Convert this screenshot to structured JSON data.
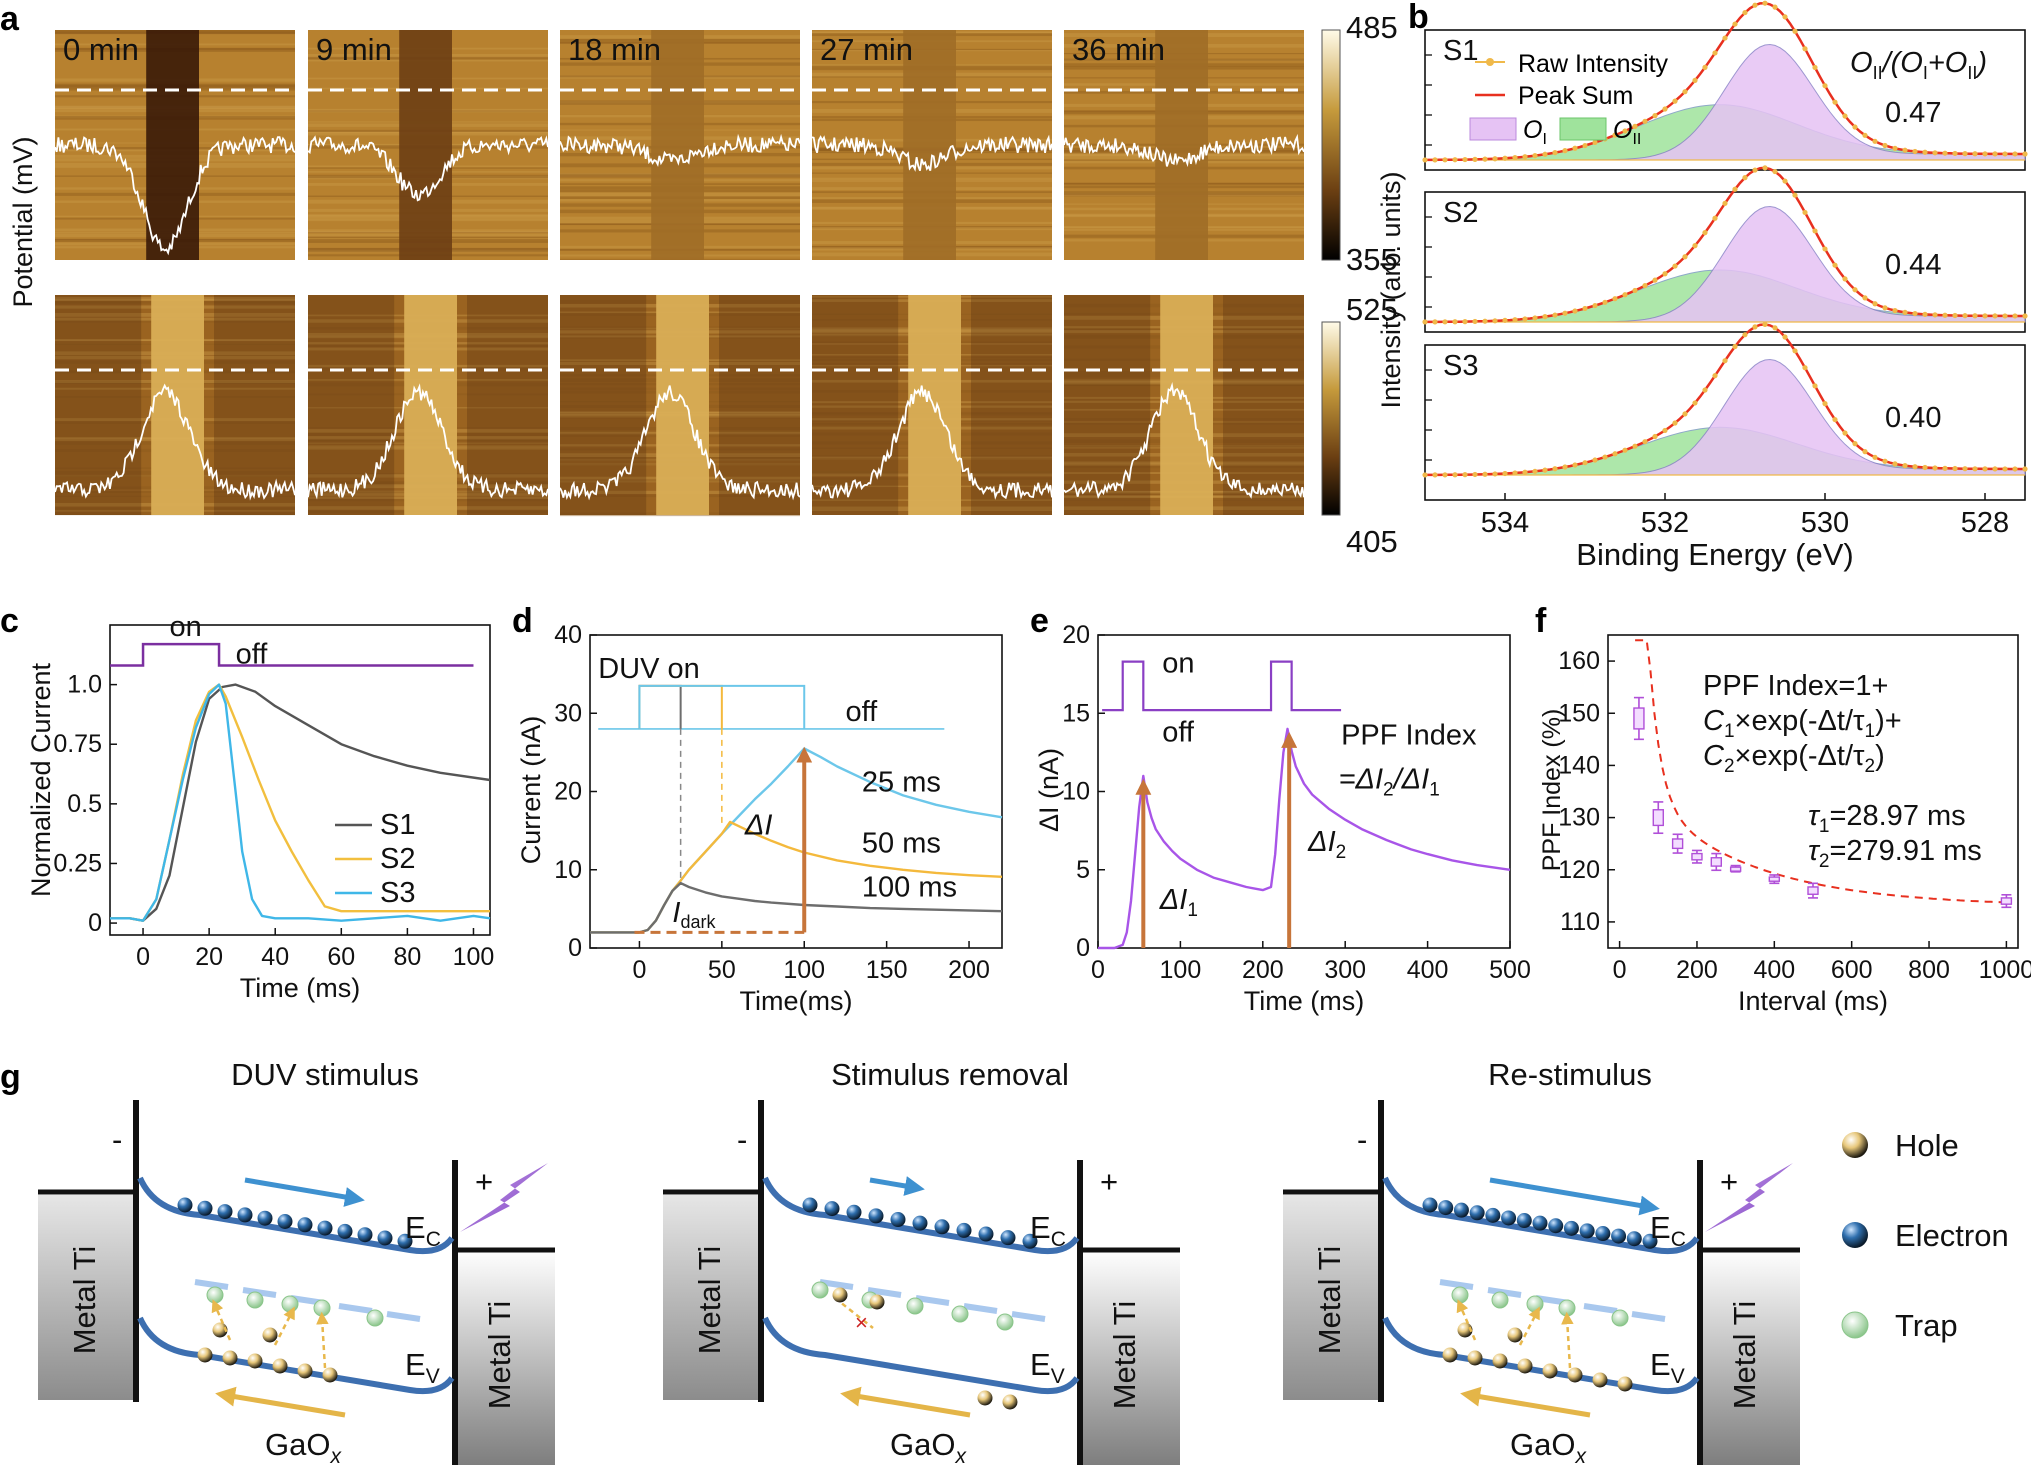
{
  "panel_labels": {
    "a": "a",
    "b": "b",
    "c": "c",
    "d": "d",
    "e": "e",
    "f": "f",
    "g": "g"
  },
  "panel_a": {
    "ylabel": "Potential (mV)",
    "top_times": [
      "0 min",
      "9 min",
      "18 min",
      "27 min",
      "36 min"
    ],
    "top_scale": {
      "max": "485",
      "min": "355"
    },
    "bottom_scale": {
      "max": "525",
      "min": "405"
    },
    "top_dip_depth": [
      0.95,
      0.45,
      0.15,
      0.18,
      0.15
    ],
    "bottom_peak_height": [
      0.85,
      0.85,
      0.85,
      0.85,
      0.85
    ]
  },
  "panel_b": {
    "ylabel": "Intensity (arb. units)",
    "legend": {
      "raw": "Raw Intensity",
      "peak": "Peak Sum",
      "o1": "O",
      "o1_sub": "I",
      "o2": "O",
      "o2_sub": "II"
    },
    "ratio": {
      "t1": "O",
      "s1": "II",
      "t2": "/(O",
      "s2": "I",
      "t3": "+O",
      "s3": "II",
      "t4": ")"
    },
    "colors": {
      "S1": "#3b7a1e",
      "S2": "#3b7a1e",
      "S3": "#a6d36f"
    },
    "chart_data": {
      "type": "line",
      "title": "",
      "xlabel": "Binding Energy (eV)",
      "x_ticks": [
        "534",
        "532",
        "530",
        "528"
      ],
      "xlim": [
        535,
        527.5
      ],
      "series": [
        {
          "name": "S1",
          "ratio": "0.47",
          "oi_amp": 1.0,
          "oii_amp": 0.47
        },
        {
          "name": "S2",
          "ratio": "0.44",
          "oi_amp": 1.0,
          "oii_amp": 0.44
        },
        {
          "name": "S3",
          "ratio": "0.40",
          "oi_amp": 1.0,
          "oii_amp": 0.4
        }
      ]
    }
  },
  "panel_c": {
    "chart_data": {
      "type": "line",
      "xlabel": "Time (ms)",
      "ylabel": "Normalized Current",
      "xlim": [
        -10,
        105
      ],
      "ylim": [
        -0.05,
        1.25
      ],
      "x_ticks": [
        "0",
        "20",
        "40",
        "60",
        "80",
        "100"
      ],
      "y_ticks": [
        "0",
        "0.25",
        "0.5",
        "0.75",
        "1.0"
      ],
      "pulse": {
        "on": "on",
        "off": "off"
      },
      "series": [
        {
          "name": "S1",
          "color": "#555555",
          "x": [
            -10,
            -4,
            0,
            4,
            8,
            12,
            16,
            20,
            24,
            28,
            34,
            40,
            50,
            60,
            70,
            80,
            90,
            105
          ],
          "y": [
            0.02,
            0.02,
            0.01,
            0.06,
            0.2,
            0.48,
            0.76,
            0.94,
            0.99,
            1.0,
            0.97,
            0.91,
            0.83,
            0.75,
            0.7,
            0.66,
            0.63,
            0.6
          ]
        },
        {
          "name": "S2",
          "color": "#f2bf3e",
          "x": [
            -10,
            -4,
            0,
            4,
            8,
            12,
            16,
            20,
            23,
            25,
            30,
            35,
            40,
            45,
            50,
            55,
            60,
            70,
            80,
            90,
            105
          ],
          "y": [
            0.02,
            0.02,
            0.01,
            0.1,
            0.35,
            0.62,
            0.85,
            0.97,
            1.0,
            0.95,
            0.78,
            0.6,
            0.43,
            0.3,
            0.18,
            0.07,
            0.05,
            0.05,
            0.05,
            0.05,
            0.05
          ]
        },
        {
          "name": "S3",
          "color": "#3fb7e8",
          "x": [
            -10,
            -4,
            0,
            4,
            8,
            12,
            16,
            20,
            23,
            25,
            28,
            30,
            33,
            36,
            40,
            50,
            60,
            70,
            80,
            90,
            100,
            105
          ],
          "y": [
            0.02,
            0.02,
            0.01,
            0.1,
            0.35,
            0.6,
            0.82,
            0.96,
            1.0,
            0.92,
            0.55,
            0.3,
            0.1,
            0.03,
            0.02,
            0.02,
            0.01,
            0.02,
            0.03,
            0.01,
            0.03,
            0.02
          ]
        }
      ]
    }
  },
  "panel_d": {
    "annot": {
      "duv": "DUV on",
      "off": "off",
      "dI": "ΔI",
      "idark": "I",
      "idark_sub": "dark"
    },
    "chart_data": {
      "type": "line",
      "xlabel": "Time(ms)",
      "ylabel": "Current (nA)",
      "xlim": [
        -30,
        220
      ],
      "ylim": [
        0,
        40
      ],
      "x_ticks": [
        "0",
        "50",
        "100",
        "150",
        "200"
      ],
      "y_ticks": [
        "0",
        "10",
        "20",
        "30",
        "40"
      ],
      "series": [
        {
          "name": "25 ms",
          "color": "#6cc7ea",
          "x": [
            -30,
            0,
            5,
            10,
            15,
            20,
            25,
            30,
            40,
            50,
            60,
            70,
            80,
            90,
            100,
            110,
            120,
            140,
            160,
            180,
            200,
            220
          ],
          "y": [
            2,
            2,
            2.3,
            3.5,
            5.5,
            7.3,
            8.6,
            10,
            12.3,
            14.6,
            16.8,
            19,
            21,
            23.2,
            25.5,
            24.4,
            23.2,
            21.2,
            19.5,
            18.3,
            17.4,
            16.7
          ]
        },
        {
          "name": "50 ms",
          "color": "#f4b93c",
          "x": [
            -30,
            0,
            5,
            10,
            15,
            20,
            25,
            30,
            40,
            50,
            55,
            60,
            70,
            80,
            90,
            100,
            120,
            140,
            160,
            180,
            200,
            220
          ],
          "y": [
            2,
            2,
            2.3,
            3.5,
            5.5,
            7.3,
            8.6,
            10,
            12.3,
            14.6,
            16.1,
            15.6,
            14.6,
            13.7,
            12.9,
            12.2,
            11.2,
            10.5,
            10,
            9.6,
            9.3,
            9.1
          ]
        },
        {
          "name": "100 ms",
          "color": "#6d6d6d",
          "x": [
            -30,
            0,
            5,
            10,
            15,
            20,
            25,
            30,
            40,
            50,
            60,
            70,
            80,
            100,
            120,
            140,
            160,
            180,
            200,
            220
          ],
          "y": [
            2,
            2,
            2.3,
            3.5,
            5.5,
            7.3,
            8.3,
            7.8,
            7.1,
            6.6,
            6.3,
            6.0,
            5.8,
            5.5,
            5.3,
            5.1,
            5.0,
            4.9,
            4.8,
            4.7
          ]
        }
      ]
    }
  },
  "panel_e": {
    "annot": {
      "on": "on",
      "off": "off",
      "ppf1": "PPF Index",
      "ppf2": "=ΔI",
      "ppf2_sub": "2",
      "ppf3": "/ΔI",
      "ppf3_sub": "1",
      "d1": "ΔI",
      "d1_sub": "1",
      "d2": "ΔI",
      "d2_sub": "2"
    },
    "chart_data": {
      "type": "line",
      "xlabel": "Time (ms)",
      "ylabel": "ΔI (nA)",
      "xlim": [
        0,
        500
      ],
      "ylim": [
        0,
        20
      ],
      "x_ticks": [
        "0",
        "100",
        "200",
        "300",
        "400",
        "500"
      ],
      "y_ticks": [
        "0",
        "5",
        "10",
        "15",
        "20"
      ],
      "series": [
        {
          "name": "response",
          "color": "#a855e8",
          "x": [
            0,
            20,
            30,
            35,
            40,
            45,
            50,
            55,
            60,
            65,
            70,
            80,
            90,
            100,
            120,
            140,
            160,
            180,
            200,
            210,
            215,
            220,
            225,
            230,
            235,
            240,
            250,
            260,
            280,
            300,
            320,
            350,
            380,
            400,
            430,
            460,
            500
          ],
          "y": [
            0,
            0,
            0.2,
            1,
            3,
            6,
            9,
            11,
            9.3,
            8.3,
            7.6,
            6.8,
            6.2,
            5.7,
            5,
            4.5,
            4.2,
            3.9,
            3.7,
            3.9,
            6,
            9.5,
            12.5,
            14,
            12.6,
            11.6,
            10.5,
            9.8,
            8.9,
            8.2,
            7.6,
            6.9,
            6.3,
            6,
            5.6,
            5.3,
            5.0
          ]
        }
      ]
    }
  },
  "panel_f": {
    "formula": {
      "l1": "PPF Index=1+",
      "l2a": "C",
      "l2b": "1",
      "l2c": "×exp(-Δt/τ",
      "l2d": "1",
      "l2e": ")+",
      "l3a": "C",
      "l3b": "2",
      "l3c": "×exp(-Δt/τ",
      "l3d": "2",
      "l3e": ")",
      "t1a": "τ",
      "t1b": "1",
      "t1c": "=28.97 ms",
      "t2a": "τ",
      "t2b": "2",
      "t2c": "=279.91 ms"
    },
    "chart_data": {
      "type": "scatter",
      "xlabel": "Interval (ms)",
      "ylabel": "PPF Index (%)",
      "xlim": [
        -30,
        1030
      ],
      "ylim": [
        105,
        165
      ],
      "x_ticks": [
        "0",
        "200",
        "400",
        "600",
        "800",
        "1000"
      ],
      "y_ticks": [
        "110",
        "120",
        "130",
        "140",
        "150",
        "160"
      ],
      "points": {
        "x": [
          50,
          100,
          150,
          200,
          250,
          300,
          400,
          500,
          1000
        ],
        "y": [
          149,
          130,
          125,
          122.5,
          121.5,
          120.2,
          118.2,
          116,
          114
        ],
        "err": [
          4,
          3,
          1.8,
          1.2,
          1.6,
          0.6,
          0.8,
          1.4,
          1.2
        ]
      },
      "fit": {
        "tau1": 28.97,
        "tau2": 279.91,
        "c1": 400,
        "c2": 26.3,
        "offset": 113
      }
    }
  },
  "panel_g": {
    "titles": [
      "DUV stimulus",
      "Stimulus removal",
      "Re-stimulus"
    ],
    "metal": "Metal Ti",
    "ec": "E",
    "ec_sub": "C",
    "ev": "E",
    "ev_sub": "V",
    "gao": "GaO",
    "gao_sub": "x",
    "minus": "-",
    "plus": "+",
    "legend": [
      "Hole",
      "Electron",
      "Trap"
    ]
  }
}
